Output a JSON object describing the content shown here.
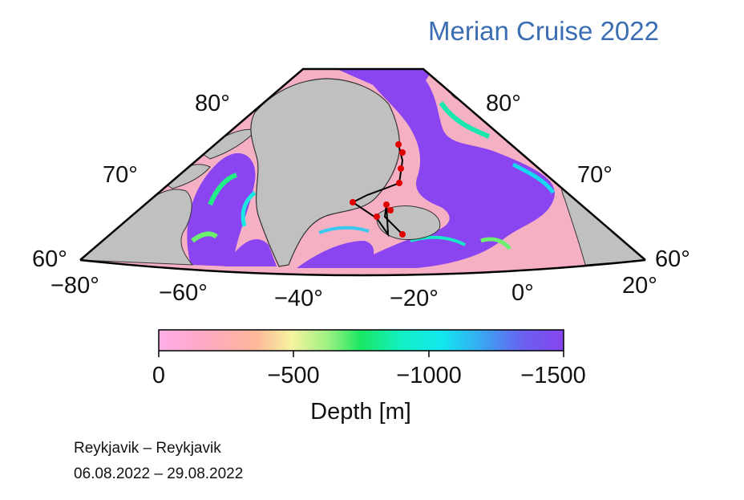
{
  "title": "Merian Cruise 2022",
  "map": {
    "latitude_labels": {
      "left": [
        "80°",
        "70°",
        "60°"
      ],
      "right": [
        "80°",
        "70°",
        "60°"
      ]
    },
    "longitude_labels": [
      "−80°",
      "−60°",
      "−40°",
      "−20°",
      "0°",
      "20°"
    ],
    "colors": {
      "land": "#c0c0c0",
      "deep": "#8a44f0",
      "shelf": "#f6b0c4",
      "frame": "#000000",
      "track": "#000000",
      "stations": "#e00000"
    },
    "stations_count": 9
  },
  "colorbar": {
    "tick_labels": [
      "0",
      "−500",
      "−1000",
      "−1500"
    ],
    "label": "Depth [m]",
    "range_m": [
      0,
      -1500
    ],
    "stops": [
      "#ffaee8",
      "#ffa8c0",
      "#ffb89a",
      "#f6f3a0",
      "#9af080",
      "#18e864",
      "#12f0c4",
      "#12e8f0",
      "#3aa6f0",
      "#6a60f0",
      "#8844f0"
    ]
  },
  "cruise": {
    "route": "Reykjavik – Reykjavik",
    "dates": "06.08.2022 – 29.08.2022"
  }
}
